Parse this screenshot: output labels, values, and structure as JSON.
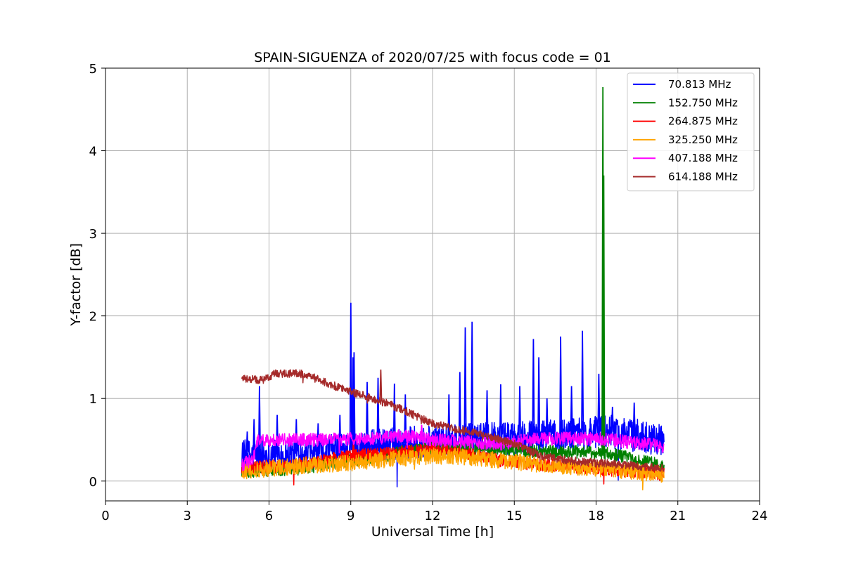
{
  "chart_data": {
    "type": "line",
    "title": "SPAIN-SIGUENZA of 2020/07/25 with focus code = 01",
    "xlabel": "Universal Time [h]",
    "ylabel": "Y-factor [dB]",
    "xlim": [
      0,
      24
    ],
    "ylim": [
      -0.24,
      5
    ],
    "x_ticks": [
      0,
      3,
      6,
      9,
      12,
      15,
      18,
      21,
      24
    ],
    "y_ticks": [
      0,
      1,
      2,
      3,
      4,
      5
    ],
    "grid": true,
    "legend_position": "top-right",
    "series": [
      {
        "name": "70.813 MHz",
        "color": "#0000ff",
        "base": [
          [
            5.0,
            0.3
          ],
          [
            6.0,
            0.32
          ],
          [
            7.5,
            0.34
          ],
          [
            9.0,
            0.4
          ],
          [
            10.5,
            0.45
          ],
          [
            12.0,
            0.48
          ],
          [
            13.5,
            0.5
          ],
          [
            15.0,
            0.52
          ],
          [
            16.5,
            0.55
          ],
          [
            17.5,
            0.58
          ],
          [
            18.5,
            0.6
          ],
          [
            19.5,
            0.55
          ],
          [
            20.5,
            0.5
          ]
        ],
        "noise": 0.2,
        "peaks": [
          [
            5.2,
            0.6
          ],
          [
            5.45,
            0.75
          ],
          [
            5.65,
            1.15
          ],
          [
            6.3,
            0.8
          ],
          [
            7.0,
            0.75
          ],
          [
            7.8,
            0.7
          ],
          [
            8.6,
            0.8
          ],
          [
            9.0,
            2.16
          ],
          [
            9.08,
            1.5
          ],
          [
            9.12,
            1.56
          ],
          [
            9.6,
            1.2
          ],
          [
            10.0,
            1.25
          ],
          [
            10.6,
            1.18
          ],
          [
            11.0,
            1.05
          ],
          [
            12.6,
            1.05
          ],
          [
            13.0,
            1.32
          ],
          [
            13.2,
            1.86
          ],
          [
            13.45,
            1.93
          ],
          [
            14.0,
            1.1
          ],
          [
            14.5,
            1.17
          ],
          [
            15.2,
            1.15
          ],
          [
            15.7,
            1.72
          ],
          [
            15.9,
            1.5
          ],
          [
            16.2,
            1.0
          ],
          [
            16.7,
            1.75
          ],
          [
            17.1,
            1.15
          ],
          [
            17.5,
            1.82
          ],
          [
            18.1,
            1.3
          ],
          [
            18.6,
            0.9
          ],
          [
            19.4,
            0.95
          ]
        ]
      },
      {
        "name": "152.750 MHz",
        "color": "#008000",
        "base": [
          [
            5.0,
            0.12
          ],
          [
            7.0,
            0.15
          ],
          [
            9.0,
            0.25
          ],
          [
            11.0,
            0.35
          ],
          [
            12.0,
            0.4
          ],
          [
            14.0,
            0.38
          ],
          [
            16.0,
            0.36
          ],
          [
            18.0,
            0.35
          ],
          [
            19.0,
            0.3
          ],
          [
            20.5,
            0.18
          ]
        ],
        "noise": 0.08,
        "peaks": [
          [
            18.25,
            4.77
          ],
          [
            18.28,
            3.7
          ]
        ]
      },
      {
        "name": "264.875 MHz",
        "color": "#ff0000",
        "base": [
          [
            5.0,
            0.15
          ],
          [
            7.0,
            0.2
          ],
          [
            9.0,
            0.3
          ],
          [
            11.0,
            0.35
          ],
          [
            12.0,
            0.38
          ],
          [
            13.0,
            0.35
          ],
          [
            14.5,
            0.25
          ],
          [
            16.0,
            0.2
          ],
          [
            18.0,
            0.15
          ],
          [
            20.5,
            0.08
          ]
        ],
        "noise": 0.08,
        "peaks": [
          [
            9.1,
            0.5
          ],
          [
            12.5,
            0.45
          ]
        ]
      },
      {
        "name": "325.250 MHz",
        "color": "#ffa500",
        "base": [
          [
            5.0,
            0.12
          ],
          [
            7.0,
            0.18
          ],
          [
            9.0,
            0.22
          ],
          [
            11.0,
            0.28
          ],
          [
            12.0,
            0.3
          ],
          [
            13.0,
            0.3
          ],
          [
            14.5,
            0.25
          ],
          [
            16.0,
            0.2
          ],
          [
            18.0,
            0.15
          ],
          [
            20.5,
            0.08
          ]
        ],
        "noise": 0.1,
        "peaks": []
      },
      {
        "name": "407.188 MHz",
        "color": "#ff00ff",
        "base": [
          [
            5.0,
            0.2
          ],
          [
            5.4,
            0.25
          ],
          [
            5.6,
            0.5
          ],
          [
            8.0,
            0.5
          ],
          [
            10.0,
            0.52
          ],
          [
            11.0,
            0.55
          ],
          [
            12.0,
            0.5
          ],
          [
            13.0,
            0.48
          ],
          [
            14.5,
            0.45
          ],
          [
            15.5,
            0.5
          ],
          [
            17.0,
            0.52
          ],
          [
            18.5,
            0.5
          ],
          [
            20.5,
            0.42
          ]
        ],
        "noise": 0.08,
        "peaks": [
          [
            11.6,
            0.68
          ]
        ]
      },
      {
        "name": "614.188 MHz",
        "color": "#a52a2a",
        "base": [
          [
            5.0,
            1.25
          ],
          [
            5.8,
            1.22
          ],
          [
            6.2,
            1.3
          ],
          [
            7.3,
            1.3
          ],
          [
            8.0,
            1.2
          ],
          [
            9.0,
            1.08
          ],
          [
            10.0,
            0.98
          ],
          [
            11.0,
            0.85
          ],
          [
            12.0,
            0.7
          ],
          [
            13.0,
            0.62
          ],
          [
            14.0,
            0.55
          ],
          [
            15.0,
            0.45
          ],
          [
            16.0,
            0.3
          ],
          [
            17.0,
            0.25
          ],
          [
            18.0,
            0.22
          ],
          [
            19.0,
            0.2
          ],
          [
            20.5,
            0.15
          ]
        ],
        "noise": 0.05,
        "peaks": [
          [
            10.1,
            1.35
          ],
          [
            10.5,
            0.97
          ]
        ]
      }
    ]
  }
}
